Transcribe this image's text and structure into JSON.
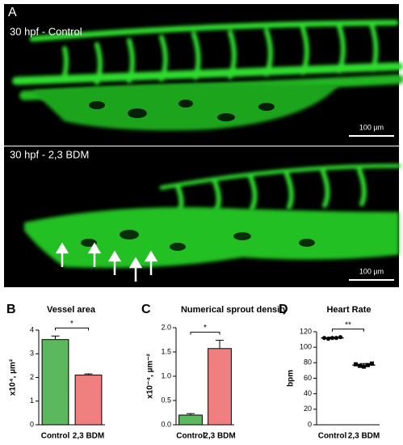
{
  "panel_a": {
    "label": "A",
    "images": [
      {
        "label": "30 hpf - Control",
        "scale_bar": "100 µm"
      },
      {
        "label": "30 hpf - 2,3 BDM",
        "scale_bar": "100 µm"
      }
    ]
  },
  "chart_data": [
    {
      "type": "bar",
      "panel_label": "B",
      "title": "Vessel area",
      "y_label": "x10⁴, µm²",
      "categories": [
        "Control",
        "2,3 BDM"
      ],
      "values": [
        3.6,
        2.1
      ],
      "errors": [
        0.15,
        0.05
      ],
      "colors": [
        "#5cb85c",
        "#f08080"
      ],
      "ylim": [
        0,
        4
      ],
      "yticks": [
        0,
        1,
        2,
        3,
        4
      ],
      "annotation": "*"
    },
    {
      "type": "bar",
      "panel_label": "C",
      "title": "Numerical sprout density",
      "y_label": "x10⁻⁴, µm⁻²",
      "categories": [
        "Control",
        "2,3 BDM"
      ],
      "values": [
        0.2,
        1.57
      ],
      "errors": [
        0.03,
        0.17
      ],
      "colors": [
        "#5cb85c",
        "#f08080"
      ],
      "ylim": [
        0,
        2
      ],
      "yticks": [
        {
          "value": 0,
          "label": "0.0"
        },
        {
          "value": 0.5,
          "label": "0.5"
        },
        {
          "value": 1,
          "label": "1.0"
        },
        {
          "value": 1.5,
          "label": "1.5"
        },
        {
          "value": 2,
          "label": "2.0"
        }
      ],
      "annotation": "*"
    },
    {
      "type": "scatter",
      "panel_label": "D",
      "title": "Heart Rate",
      "y_label": "bpm",
      "categories": [
        "Control",
        "2,3 BDM"
      ],
      "values": [
        112,
        77
      ],
      "errors": [
        1,
        2
      ],
      "points": [
        [
          112,
          111,
          112,
          112,
          113
        ],
        [
          78,
          76,
          75,
          77,
          79
        ]
      ],
      "markers": [
        "circle",
        "square"
      ],
      "colors": [
        "#000000",
        "#000000"
      ],
      "ylim": [
        0,
        120
      ],
      "yticks": [
        0,
        20,
        40,
        60,
        80,
        100,
        120
      ],
      "annotation": "**"
    }
  ]
}
